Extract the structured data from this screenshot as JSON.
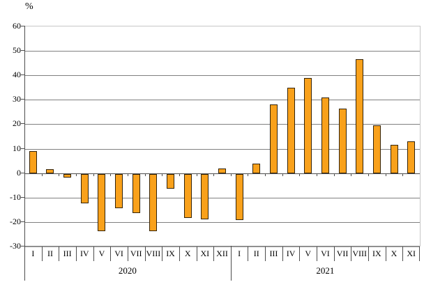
{
  "chart_data": {
    "type": "bar",
    "title": "",
    "xlabel": "",
    "ylabel": "%",
    "ylim": [
      -30,
      60
    ],
    "ytick_step": 10,
    "grid": true,
    "legend": "none",
    "bar_color": "#F9A11B",
    "bar_border_color": "#33230a",
    "grid_color": "#808080",
    "plot_border_color": "#c6c6c6",
    "axis_color": "#4d4d4d",
    "groups": [
      {
        "label": "2020",
        "categories": [
          "I",
          "II",
          "III",
          "IV",
          "V",
          "VI",
          "VII",
          "VIII",
          "IX",
          "X",
          "XI",
          "XII"
        ],
        "values": [
          9,
          1.5,
          -1.5,
          -12,
          -23.5,
          -14,
          -16,
          -23.5,
          -6,
          -18,
          -18.5,
          2
        ]
      },
      {
        "label": "2021",
        "categories": [
          "I",
          "II",
          "III",
          "IV",
          "V",
          "VI",
          "VII",
          "VIII",
          "IX",
          "X",
          "XI"
        ],
        "values": [
          -19,
          4,
          28,
          35,
          39,
          31,
          26.5,
          46.5,
          19.5,
          11.5,
          13
        ]
      }
    ]
  }
}
